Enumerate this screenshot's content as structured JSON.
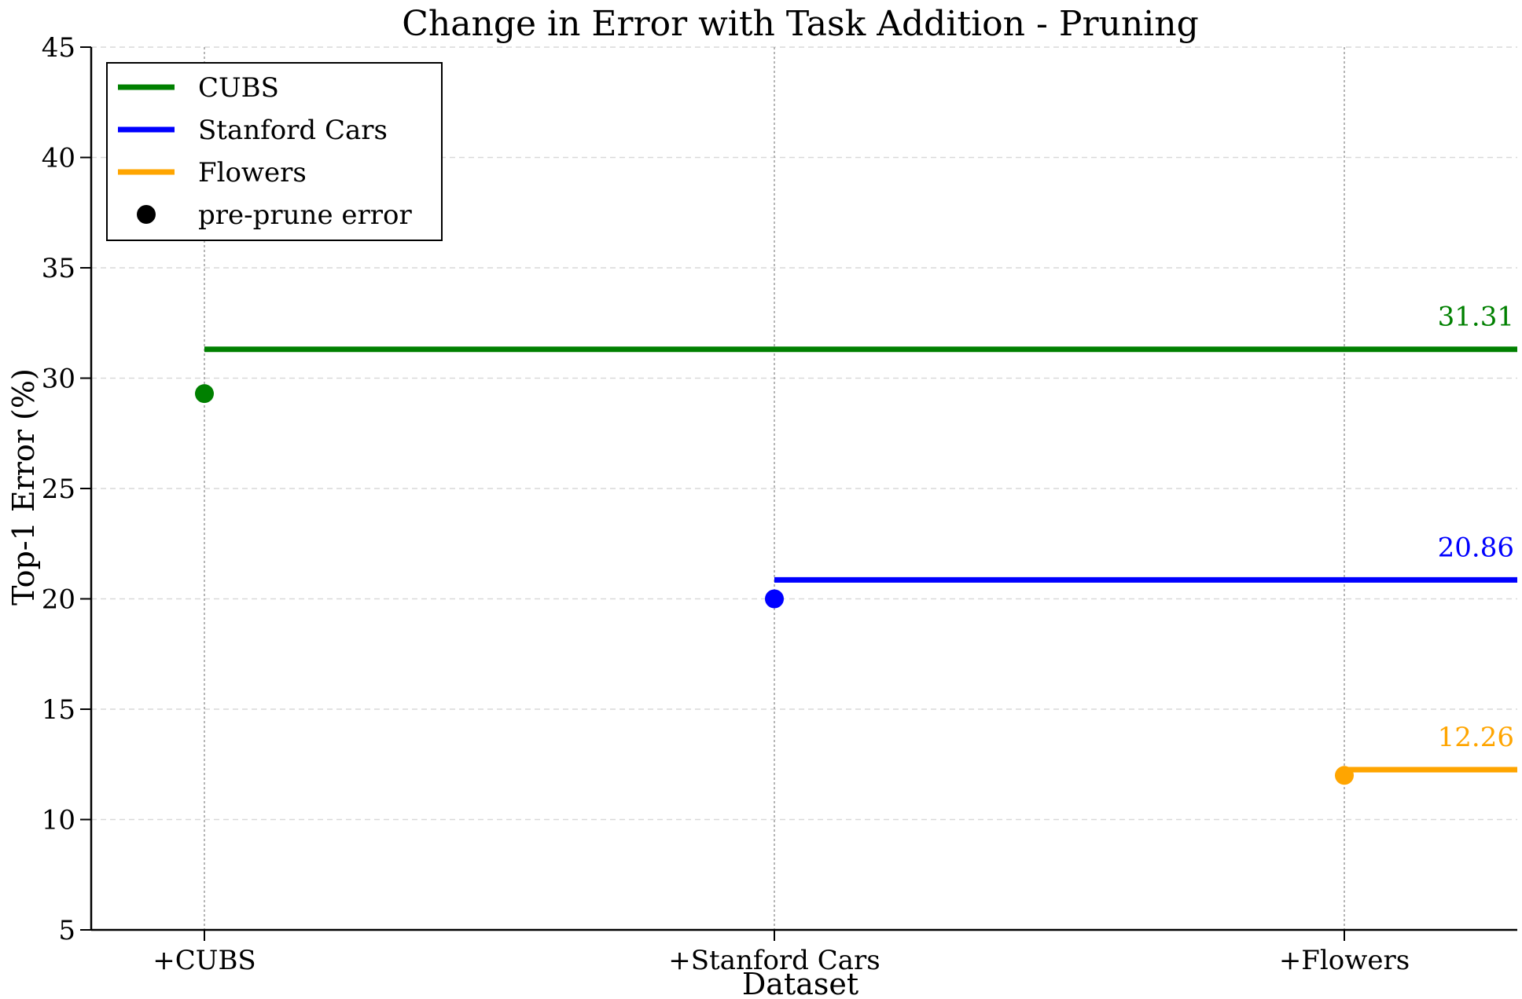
{
  "chart_data": {
    "type": "line",
    "title": "Change in Error with Task Addition - Pruning",
    "xlabel": "Dataset",
    "ylabel": "Top-1 Error (%)",
    "categories": [
      "+CUBS",
      "+Stanford Cars",
      "+Flowers"
    ],
    "ylim": [
      5,
      45
    ],
    "yticks": [
      5,
      10,
      15,
      20,
      25,
      30,
      35,
      40,
      45
    ],
    "grid": true,
    "legend_position": "top-left",
    "series": [
      {
        "name": "CUBS",
        "color": "#008000",
        "start_category": "+CUBS",
        "pre_prune_error": 29.3,
        "post_prune_error": 31.31,
        "value_label": "31.31"
      },
      {
        "name": "Stanford Cars",
        "color": "#0000ff",
        "start_category": "+Stanford Cars",
        "pre_prune_error": 20.0,
        "post_prune_error": 20.86,
        "value_label": "20.86"
      },
      {
        "name": "Flowers",
        "color": "#ffa500",
        "start_category": "+Flowers",
        "pre_prune_error": 12.0,
        "post_prune_error": 12.26,
        "value_label": "12.26"
      }
    ],
    "marker_legend": {
      "label": "pre-prune error",
      "color": "#000000"
    }
  }
}
